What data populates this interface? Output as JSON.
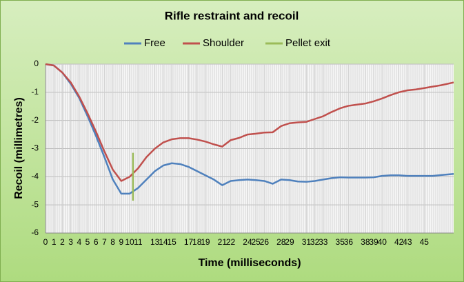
{
  "chart_data": {
    "type": "line",
    "title": "Rifle restraint and recoil",
    "x_label": "Time (milliseconds)",
    "y_label": "Recoil (millimetres)",
    "xlim": [
      0,
      48.5
    ],
    "ylim": [
      -6,
      0
    ],
    "xticks": [
      0,
      1,
      2,
      3,
      4,
      5,
      6,
      7,
      8,
      9,
      10,
      11,
      13,
      14,
      15,
      17,
      18,
      19,
      21,
      22,
      24,
      25,
      26,
      28,
      29,
      31,
      32,
      33,
      35,
      36,
      38,
      39,
      40,
      42,
      43,
      45
    ],
    "yticks": [
      0,
      -1,
      -2,
      -3,
      -4,
      -5,
      -6
    ],
    "grid": true,
    "series": [
      {
        "name": "Free",
        "color": "#4f81bd",
        "x": [
          0,
          1,
          2,
          3,
          4,
          5,
          6,
          7,
          8,
          9,
          10,
          11,
          12,
          13,
          14,
          15,
          16,
          17,
          18,
          19,
          20,
          21,
          22,
          23,
          24,
          25,
          26,
          27,
          28,
          29,
          30,
          31,
          32,
          33,
          34,
          35,
          36,
          37,
          38,
          39,
          40,
          41,
          42,
          43,
          44,
          45,
          46,
          47,
          48.5
        ],
        "values": [
          0,
          -0.05,
          -0.3,
          -0.7,
          -1.2,
          -1.85,
          -2.55,
          -3.3,
          -4.1,
          -4.6,
          -4.6,
          -4.4,
          -4.1,
          -3.8,
          -3.6,
          -3.52,
          -3.55,
          -3.65,
          -3.8,
          -3.95,
          -4.1,
          -4.3,
          -4.15,
          -4.12,
          -4.1,
          -4.12,
          -4.15,
          -4.25,
          -4.1,
          -4.12,
          -4.17,
          -4.18,
          -4.15,
          -4.1,
          -4.05,
          -4.02,
          -4.03,
          -4.03,
          -4.03,
          -4.02,
          -3.97,
          -3.95,
          -3.95,
          -3.97,
          -3.97,
          -3.97,
          -3.97,
          -3.94,
          -3.9
        ]
      },
      {
        "name": "Shoulder",
        "color": "#c0504d",
        "x": [
          0,
          1,
          2,
          3,
          4,
          5,
          6,
          7,
          8,
          9,
          10,
          11,
          12,
          13,
          14,
          15,
          16,
          17,
          18,
          19,
          20,
          21,
          22,
          23,
          24,
          25,
          26,
          27,
          28,
          29,
          30,
          31,
          32,
          33,
          34,
          35,
          36,
          37,
          38,
          39,
          40,
          41,
          42,
          43,
          44,
          45,
          46,
          47,
          48.5
        ],
        "values": [
          0,
          -0.05,
          -0.3,
          -0.65,
          -1.15,
          -1.75,
          -2.4,
          -3.1,
          -3.75,
          -4.15,
          -4.0,
          -3.7,
          -3.3,
          -3.0,
          -2.78,
          -2.67,
          -2.63,
          -2.63,
          -2.68,
          -2.75,
          -2.85,
          -2.93,
          -2.7,
          -2.62,
          -2.5,
          -2.47,
          -2.43,
          -2.42,
          -2.2,
          -2.1,
          -2.07,
          -2.05,
          -1.95,
          -1.85,
          -1.7,
          -1.57,
          -1.48,
          -1.44,
          -1.4,
          -1.32,
          -1.22,
          -1.1,
          -1.0,
          -0.93,
          -0.9,
          -0.85,
          -0.8,
          -0.75,
          -0.65
        ]
      },
      {
        "name": "Pellet exit",
        "color": "#9bbb59",
        "x": [
          10.4,
          10.4
        ],
        "values": [
          -3.15,
          -4.85
        ]
      }
    ]
  }
}
